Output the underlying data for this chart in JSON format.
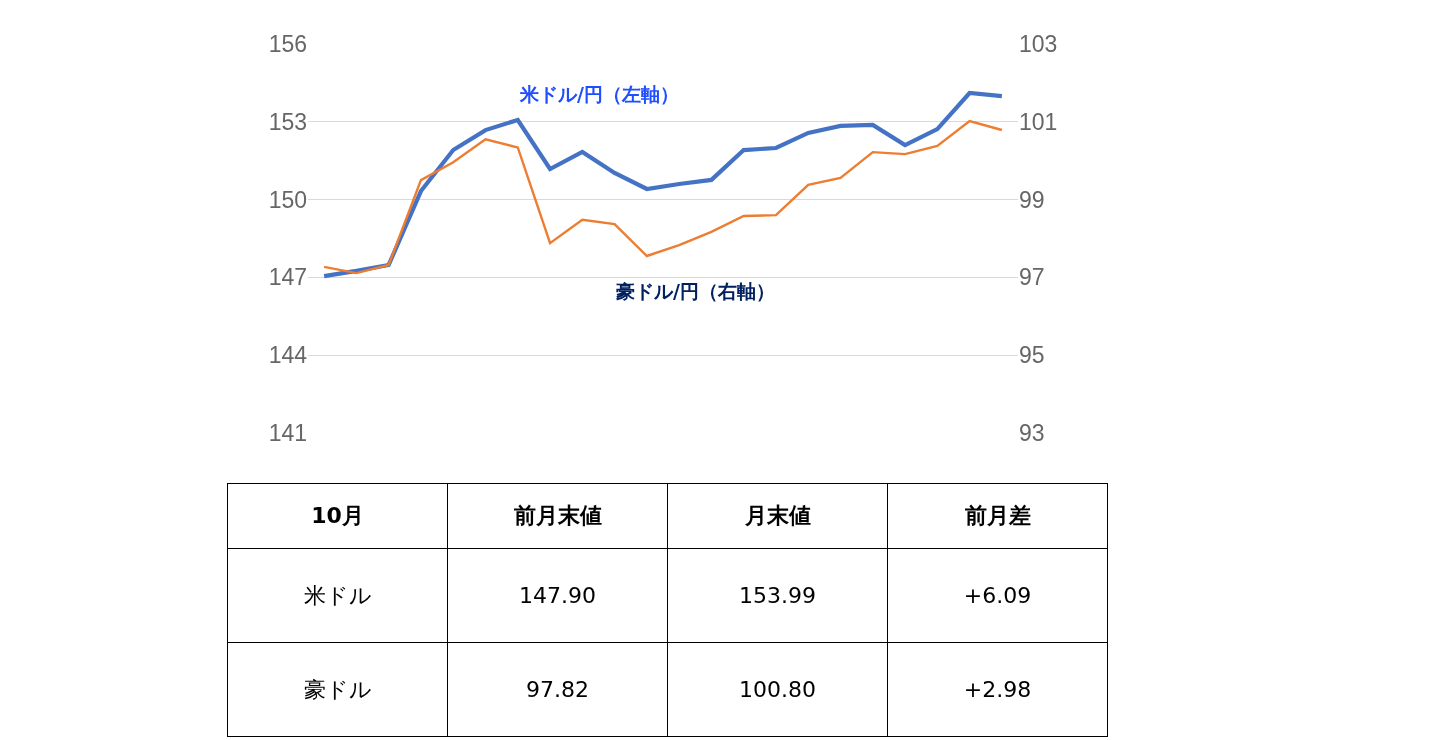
{
  "chart_data": [
    {
      "type": "line",
      "categories": [
        null,
        null,
        null,
        null,
        null,
        null,
        null,
        null,
        null,
        null,
        null,
        null,
        null,
        null,
        null,
        null,
        null,
        null,
        null,
        null,
        null,
        null
      ],
      "series": [
        {
          "color": "#4472c4",
          "axis": "y",
          "values": [
            147.05,
            147.25,
            147.48,
            150.33,
            151.91,
            152.68,
            153.07,
            151.18,
            151.84,
            151.03,
            150.41,
            150.6,
            150.76,
            151.91,
            151.99,
            152.57,
            152.84,
            152.88,
            152.1,
            152.72,
            154.11,
            153.99
          ]
        },
        {
          "color": "#ed7d31",
          "axis": "y2",
          "values": [
            97.27,
            97.11,
            97.32,
            99.5,
            99.96,
            100.55,
            100.34,
            97.88,
            98.48,
            98.37,
            97.55,
            97.83,
            98.17,
            98.58,
            98.6,
            99.38,
            99.56,
            100.22,
            100.17,
            100.38,
            101.02,
            100.79
          ]
        }
      ],
      "ylim": [
        141,
        156
      ],
      "yticks": [
        141,
        144,
        147,
        150,
        153,
        156
      ],
      "y2lim": [
        93,
        103
      ],
      "y2ticks": [
        93,
        95,
        97,
        99,
        101,
        103
      ],
      "grid": "y",
      "annotations": [
        "米ドル/円（左軸）",
        "豪ドル/円（右軸）"
      ]
    },
    {
      "type": "other",
      "categories": [
        "10月",
        "前月末値",
        "月末値",
        "前月差"
      ],
      "y_categories": [
        "米ドル",
        "豪ドル"
      ],
      "cell_labels": [
        [
          "147.90",
          "153.99",
          "+6.09"
        ],
        [
          "97.82",
          "100.80",
          "+2.98"
        ]
      ]
    }
  ]
}
